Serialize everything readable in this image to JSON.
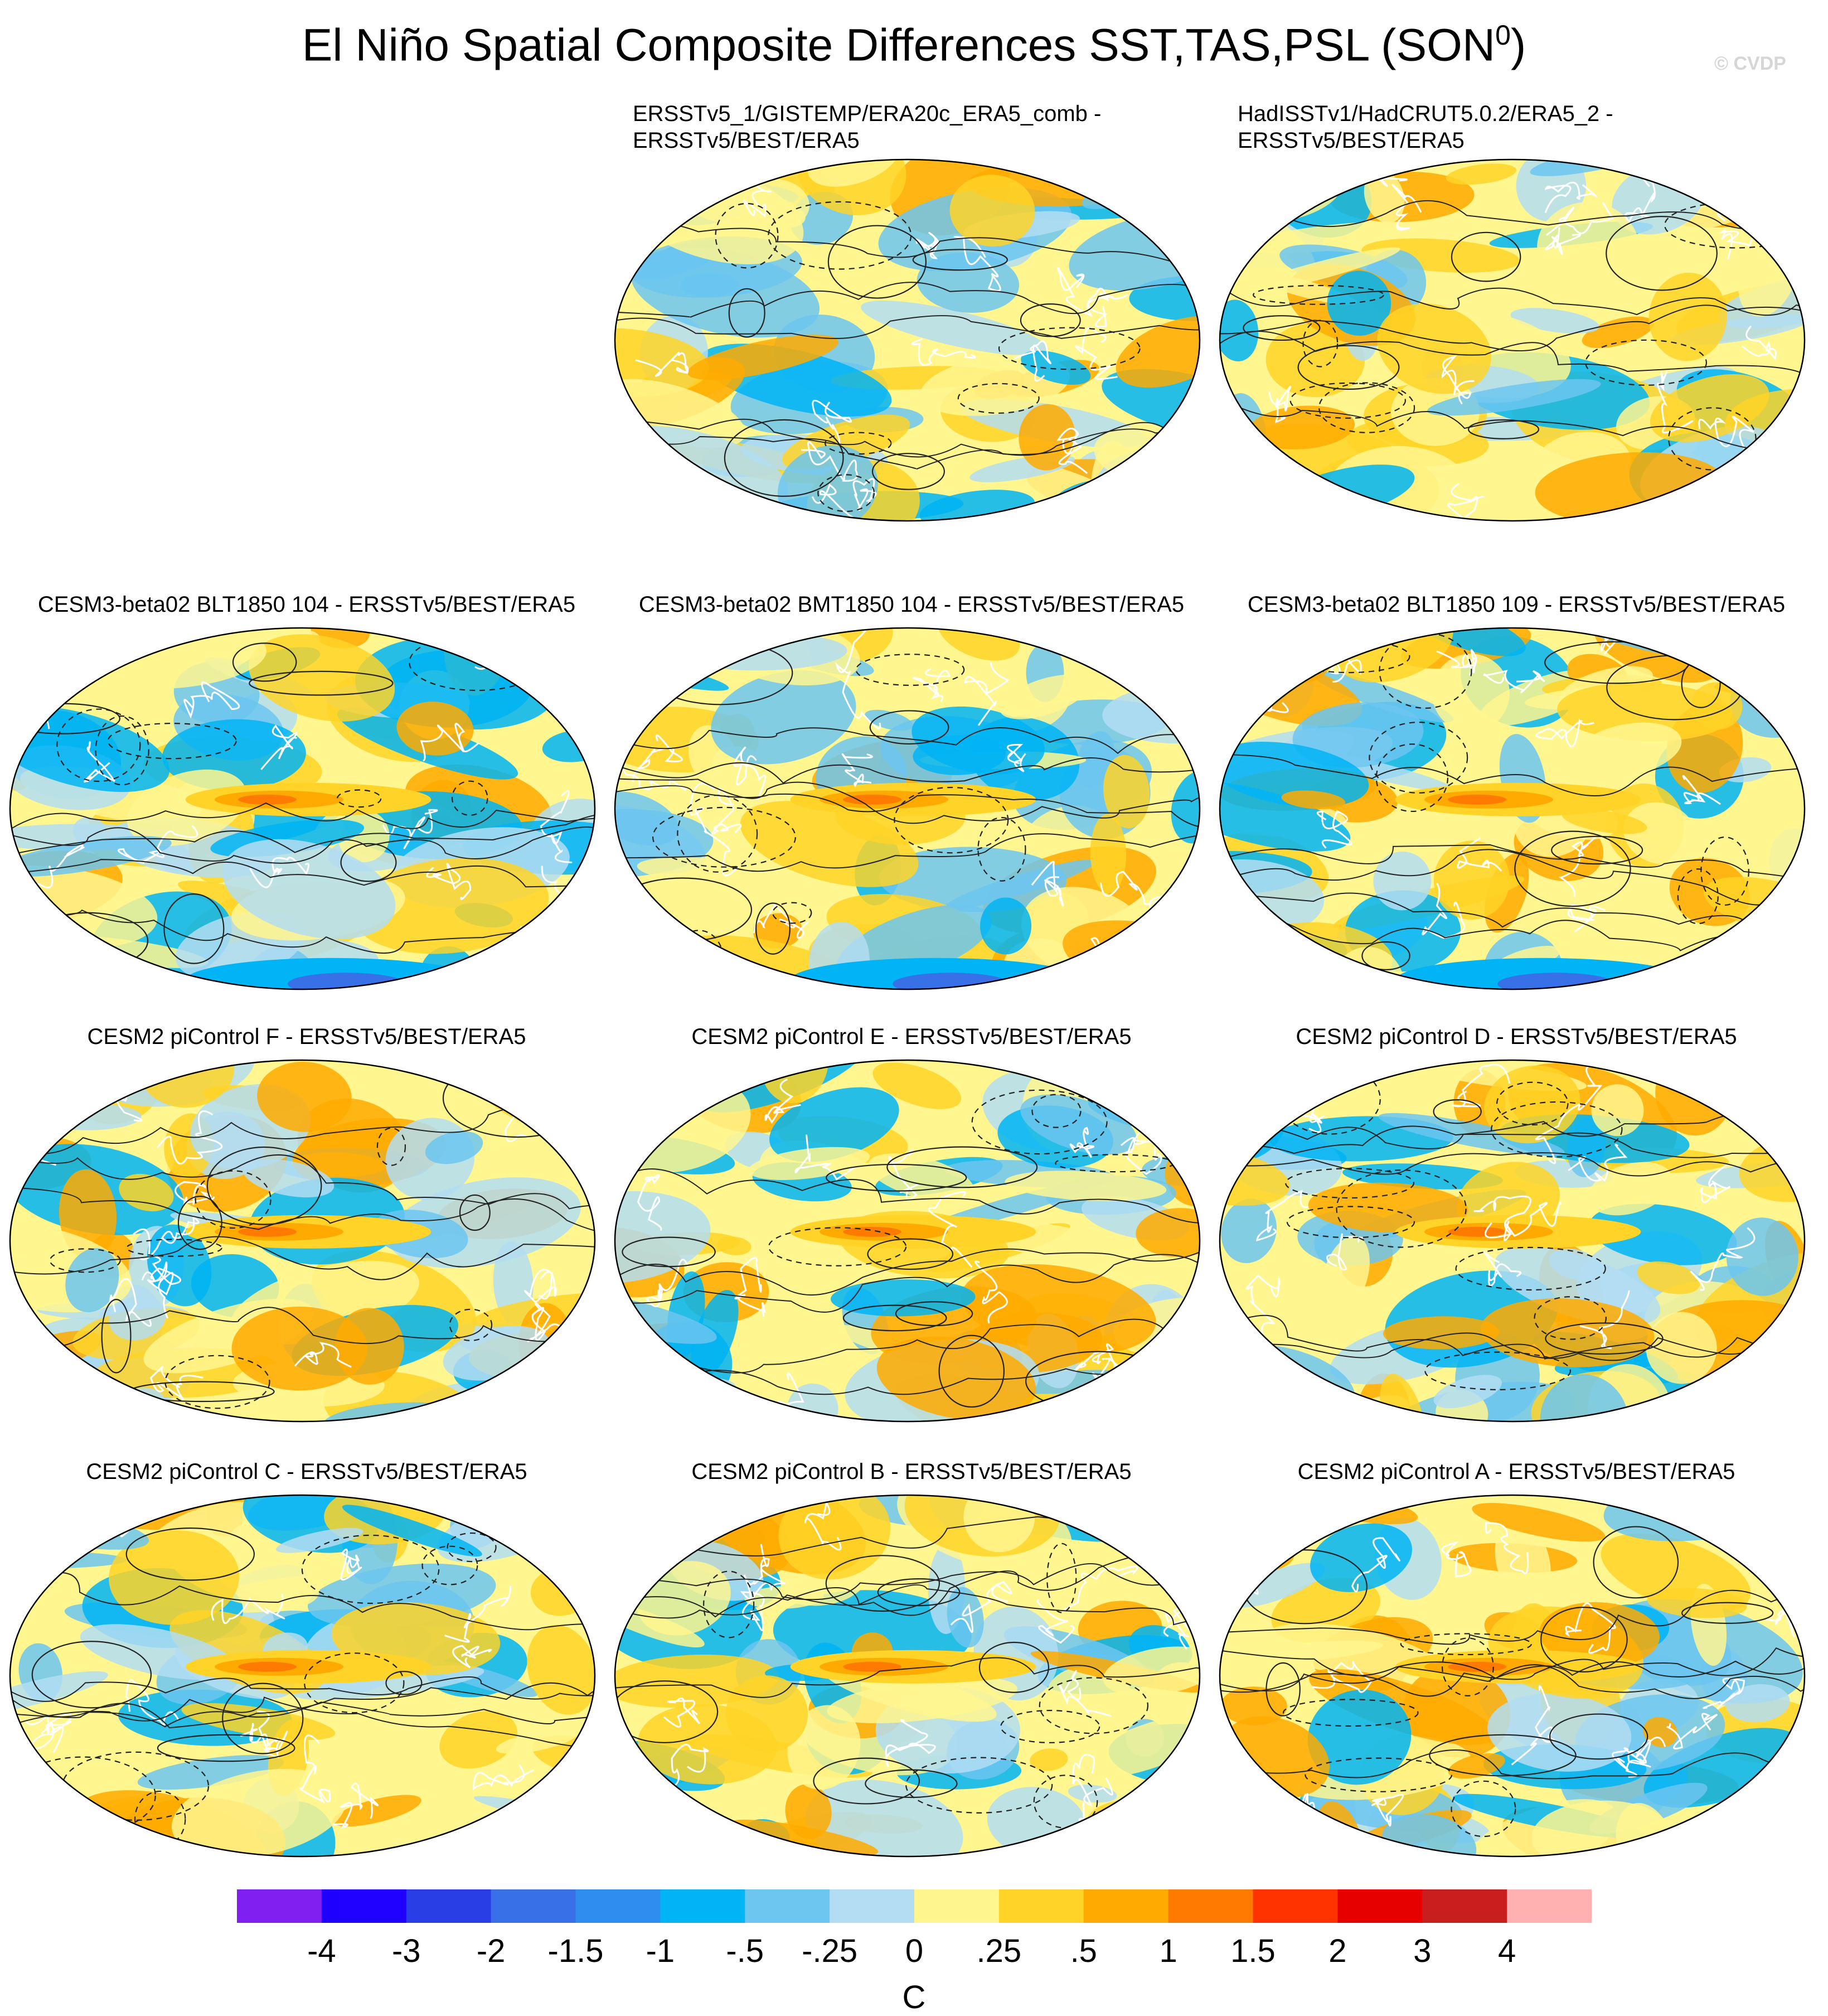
{
  "title": "El Niño Spatial Composite Differences SST,TAS,PSL (SON",
  "title_sup": "0",
  "title_end": ")",
  "watermark": "© CVDP",
  "chart_data": {
    "type": "map-grid",
    "panels": [
      {
        "row": 0,
        "col": 1,
        "title_lines": [
          "ERSSTv5_1/GISTEMP/ERA20c_ERA5_comb -",
          "ERSSTv5/BEST/ERA5"
        ]
      },
      {
        "row": 0,
        "col": 2,
        "title_lines": [
          "HadISSTv1/HadCRUT5.0.2/ERA5_2 -",
          "ERSSTv5/BEST/ERA5"
        ]
      },
      {
        "row": 1,
        "col": 0,
        "title_lines": [
          "CESM3-beta02 BLT1850 104 - ERSSTv5/BEST/ERA5"
        ]
      },
      {
        "row": 1,
        "col": 1,
        "title_lines": [
          "CESM3-beta02 BMT1850 104 - ERSSTv5/BEST/ERA5"
        ]
      },
      {
        "row": 1,
        "col": 2,
        "title_lines": [
          "CESM3-beta02 BLT1850 109 - ERSSTv5/BEST/ERA5"
        ]
      },
      {
        "row": 2,
        "col": 0,
        "title_lines": [
          "CESM2 piControl F - ERSSTv5/BEST/ERA5"
        ]
      },
      {
        "row": 2,
        "col": 1,
        "title_lines": [
          "CESM2 piControl E - ERSSTv5/BEST/ERA5"
        ]
      },
      {
        "row": 2,
        "col": 2,
        "title_lines": [
          "CESM2 piControl D - ERSSTv5/BEST/ERA5"
        ]
      },
      {
        "row": 3,
        "col": 0,
        "title_lines": [
          "CESM2 piControl C - ERSSTv5/BEST/ERA5"
        ]
      },
      {
        "row": 3,
        "col": 1,
        "title_lines": [
          "CESM2 piControl B - ERSSTv5/BEST/ERA5"
        ]
      },
      {
        "row": 3,
        "col": 2,
        "title_lines": [
          "CESM2 piControl A - ERSSTv5/BEST/ERA5"
        ]
      }
    ],
    "colorbar": {
      "labels": [
        "-4",
        "-3",
        "-2",
        "-1.5",
        "-1",
        "-.5",
        "-.25",
        "0",
        ".25",
        ".5",
        "1",
        "1.5",
        "2",
        "3",
        "4"
      ],
      "colors": [
        "#7f1ff0",
        "#1f00ff",
        "#2a3ee6",
        "#3870e8",
        "#2f8df0",
        "#00b4f5",
        "#6cc6f0",
        "#b3ddf2",
        "#fff68f",
        "#ffd327",
        "#ffaa00",
        "#ff7a00",
        "#ff3300",
        "#e60000",
        "#c81e1e",
        "#ffb0b0"
      ],
      "unit": "C"
    }
  }
}
